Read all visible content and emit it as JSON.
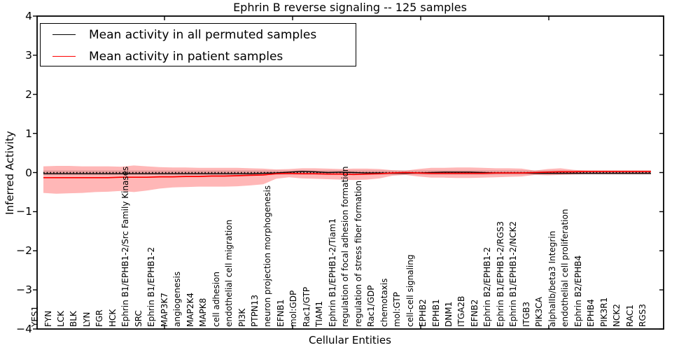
{
  "chart_data": {
    "type": "line",
    "title": "Ephrin B reverse signaling -- 125 samples",
    "xlabel": "Cellular Entities",
    "ylabel": "Inferred Activity",
    "ylim": [
      -4,
      4
    ],
    "yticks": [
      4,
      3,
      2,
      1,
      0,
      -1,
      -2,
      -3,
      -4
    ],
    "ytick_labels": [
      "4",
      "3",
      "2",
      "1",
      "0",
      "−1",
      "−2",
      "−3",
      "−4"
    ],
    "grid": false,
    "legend_position": "upper left",
    "zero_line": {
      "style": "dotted",
      "color": "#000000",
      "y": 0
    },
    "categories": [
      "YES1",
      "FYN",
      "LCK",
      "BLK",
      "LYN",
      "FGR",
      "HCK",
      "Ephrin B1/EPHB1-2/Src Family Kinases",
      "SRC",
      "Ephrin B1/EPHB1-2",
      "MAP3K7",
      "angiogenesis",
      "MAP2K4",
      "MAPK8",
      "cell adhesion",
      "endothelial cell migration",
      "PI3K",
      "PTPN13",
      "neuron projection morphogenesis",
      "EFNB1",
      "mol:GDP",
      "Rac1/GTP",
      "TIAM1",
      "Ephrin B1/EPHB1-2/Tiam1",
      "regulation of focal adhesion formation",
      "regulation of stress fiber formation",
      "Rac1/GDP",
      "chemotaxis",
      "mol:GTP",
      "cell-cell signaling",
      "EPHB2",
      "EPHB1",
      "DNM1",
      "ITGA2B",
      "EFNB2",
      "Ephrin B2/EPHB1-2",
      "Ephrin B1/EPHB1-2/RGS3",
      "Ephrin B1/EPHB1-2/NCK2",
      "ITGB3",
      "PIK3CA",
      "alphaIIb/beta3 Integrin",
      "endothelial cell proliferation",
      "Ephrin B2/EPHB4",
      "EPHB4",
      "PIK3R1",
      "NCK2",
      "RAC1",
      "RGS3"
    ],
    "series": [
      {
        "name": "Mean activity in all permuted samples",
        "color": "#000000",
        "values": [
          -0.03,
          -0.03,
          -0.03,
          -0.03,
          -0.03,
          -0.03,
          -0.03,
          -0.03,
          -0.03,
          -0.03,
          -0.03,
          -0.03,
          -0.03,
          -0.03,
          -0.03,
          -0.03,
          -0.03,
          -0.02,
          -0.01,
          0.01,
          0.03,
          0.02,
          0.0,
          0.01,
          0.0,
          -0.01,
          -0.01,
          -0.02,
          -0.02,
          -0.01,
          0.0,
          0.01,
          0.01,
          0.01,
          0.0,
          -0.01,
          -0.01,
          -0.01,
          -0.02,
          -0.02,
          -0.02,
          -0.02,
          -0.02,
          -0.02,
          -0.02,
          -0.02,
          -0.02,
          -0.02
        ]
      },
      {
        "name": "Mean activity in patient samples",
        "color": "#ff0000",
        "values": [
          -0.13,
          -0.13,
          -0.13,
          -0.13,
          -0.13,
          -0.13,
          -0.12,
          -0.12,
          -0.12,
          -0.11,
          -0.11,
          -0.1,
          -0.1,
          -0.09,
          -0.09,
          -0.08,
          -0.07,
          -0.06,
          -0.03,
          -0.02,
          -0.03,
          -0.03,
          -0.04,
          -0.04,
          -0.05,
          -0.04,
          -0.03,
          -0.01,
          0.0,
          -0.01,
          -0.02,
          -0.02,
          -0.02,
          -0.02,
          -0.02,
          -0.01,
          -0.01,
          -0.01,
          0.0,
          0.01,
          0.02,
          0.02,
          0.03,
          0.03,
          0.03,
          0.03,
          0.03,
          0.03
        ]
      }
    ],
    "bands": [
      {
        "name": "permuted-std-band",
        "color": "rgba(120,120,120,0.28)",
        "upper": 0.055,
        "lower": -0.055
      },
      {
        "name": "patient-std-band",
        "color": "rgba(255,45,45,0.34)",
        "upper": [
          0.16,
          0.17,
          0.17,
          0.16,
          0.16,
          0.16,
          0.15,
          0.18,
          0.16,
          0.14,
          0.13,
          0.13,
          0.12,
          0.12,
          0.12,
          0.12,
          0.11,
          0.1,
          0.08,
          0.09,
          0.11,
          0.11,
          0.1,
          0.09,
          0.1,
          0.1,
          0.09,
          0.06,
          0.05,
          0.09,
          0.12,
          0.12,
          0.13,
          0.13,
          0.12,
          0.11,
          0.11,
          0.1,
          0.05,
          0.09,
          0.11,
          0.07,
          0.05,
          0.05,
          0.05,
          0.05,
          0.05,
          0.05
        ],
        "lower": [
          -0.52,
          -0.54,
          -0.53,
          -0.52,
          -0.5,
          -0.49,
          -0.47,
          -0.5,
          -0.46,
          -0.41,
          -0.38,
          -0.37,
          -0.36,
          -0.36,
          -0.36,
          -0.35,
          -0.33,
          -0.3,
          -0.16,
          -0.12,
          -0.15,
          -0.16,
          -0.17,
          -0.18,
          -0.19,
          -0.18,
          -0.15,
          -0.08,
          -0.06,
          -0.1,
          -0.13,
          -0.13,
          -0.14,
          -0.14,
          -0.13,
          -0.12,
          -0.11,
          -0.1,
          -0.06,
          -0.07,
          -0.06,
          -0.05,
          -0.04,
          -0.04,
          -0.04,
          -0.04,
          -0.04,
          -0.04
        ]
      }
    ]
  }
}
